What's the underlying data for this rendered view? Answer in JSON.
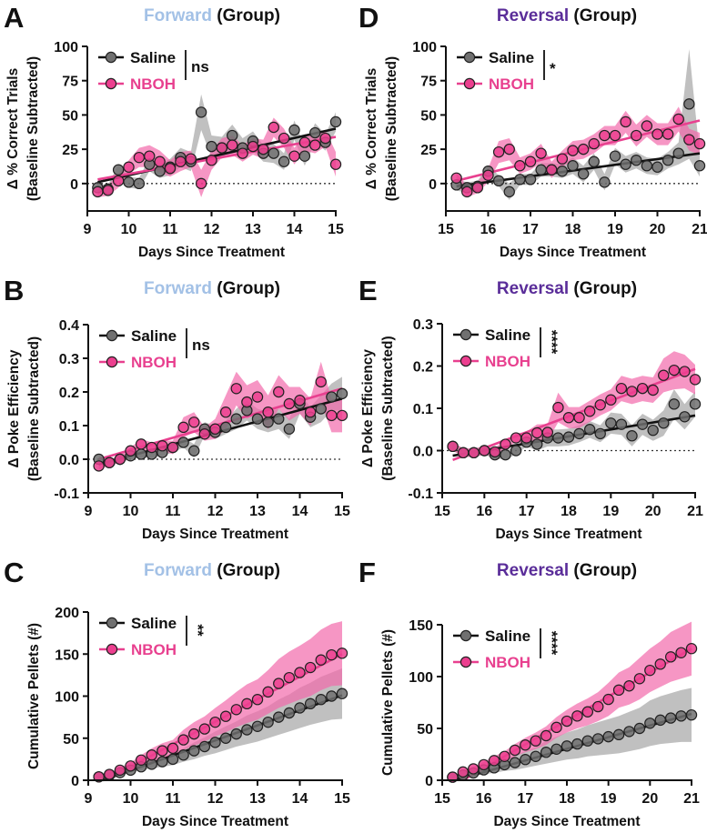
{
  "colors": {
    "forward": "#a3c1e6",
    "reversal": "#5a2d99",
    "saline_marker": "#707070",
    "saline_band": "#9e9e9e",
    "saline_line": "#111111",
    "nboh_marker": "#ec3f8f",
    "nboh_band": "#f26aab",
    "nboh_line": "#e8408f",
    "nboh_text": "#e8408f"
  },
  "chart_data": [
    {
      "panel": "A",
      "type": "line",
      "title_colored": "Forward",
      "title_rest": " (Group)",
      "title_color": "forward",
      "ylabel": [
        "Δ % Correct Trials",
        "(Baseline Subtracted)"
      ],
      "xlabel": "Days Since Treatment",
      "xlim": [
        9,
        15
      ],
      "ylim": [
        -20,
        100
      ],
      "xticks": [
        "9",
        "10",
        "11",
        "12",
        "13",
        "14",
        "15"
      ],
      "yticks": [
        "0",
        "25",
        "50",
        "75",
        "100"
      ],
      "zero_line": true,
      "significance": "ns",
      "x": [
        9.25,
        9.5,
        9.75,
        10,
        10.25,
        10.5,
        10.75,
        11,
        11.25,
        11.5,
        11.75,
        12,
        12.25,
        12.5,
        12.75,
        13,
        13.25,
        13.5,
        13.75,
        14,
        14.25,
        14.5,
        14.75,
        15
      ],
      "series": [
        {
          "name": "Saline",
          "values": [
            -3,
            -4,
            10,
            1,
            0,
            14,
            9,
            12,
            19,
            16,
            52,
            27,
            26,
            35,
            26,
            31,
            22,
            22,
            16,
            39,
            20,
            37,
            30,
            45
          ],
          "sem": [
            3,
            3,
            4,
            4,
            4,
            5,
            5,
            6,
            7,
            7,
            13,
            8,
            8,
            8,
            7,
            7,
            6,
            7,
            6,
            7,
            7,
            7,
            6,
            7
          ],
          "fit": {
            "x": [
              9.25,
              15
            ],
            "y": [
              1,
              40
            ]
          }
        },
        {
          "name": "NBOH",
          "values": [
            -6,
            -5,
            2,
            12,
            19,
            20,
            16,
            11,
            16,
            18,
            0,
            17,
            26,
            28,
            22,
            27,
            25,
            41,
            33,
            20,
            30,
            28,
            33,
            14
          ],
          "sem": [
            4,
            4,
            5,
            5,
            7,
            8,
            8,
            6,
            7,
            6,
            10,
            7,
            7,
            7,
            6,
            6,
            7,
            7,
            7,
            6,
            6,
            6,
            6,
            9
          ],
          "fit": {
            "x": [
              9.25,
              15
            ],
            "y": [
              3,
              34
            ]
          }
        }
      ]
    },
    {
      "panel": "D",
      "type": "line",
      "title_colored": "Reversal",
      "title_rest": " (Group)",
      "title_color": "reversal",
      "ylabel": [
        "Δ % Correct Trials",
        "(Baseline Subtracted)"
      ],
      "xlabel": "Days Since Treatment",
      "xlim": [
        15,
        21
      ],
      "ylim": [
        -20,
        100
      ],
      "xticks": [
        "15",
        "16",
        "17",
        "18",
        "19",
        "20",
        "21"
      ],
      "yticks": [
        "0",
        "25",
        "50",
        "75",
        "100"
      ],
      "zero_line": true,
      "significance": "*",
      "x": [
        15.25,
        15.5,
        15.75,
        16,
        16.25,
        16.5,
        16.75,
        17,
        17.25,
        17.5,
        17.75,
        18,
        18.25,
        18.5,
        18.75,
        19,
        19.25,
        19.5,
        19.75,
        20,
        20.25,
        20.5,
        20.75,
        21
      ],
      "series": [
        {
          "name": "Saline",
          "values": [
            -1,
            -3,
            -2,
            9,
            2,
            -6,
            3,
            3,
            10,
            10,
            9,
            13,
            7,
            16,
            1,
            20,
            14,
            17,
            13,
            12,
            17,
            22,
            58,
            13
          ],
          "sem": [
            4,
            4,
            4,
            4,
            4,
            6,
            4,
            4,
            5,
            5,
            5,
            6,
            6,
            6,
            6,
            6,
            6,
            6,
            6,
            6,
            6,
            8,
            40,
            8
          ],
          "fit": {
            "x": [
              15.25,
              21
            ],
            "y": [
              -2,
              22
            ]
          }
        },
        {
          "name": "NBOH",
          "values": [
            4,
            -6,
            -3,
            6,
            23,
            25,
            13,
            16,
            22,
            10,
            18,
            24,
            25,
            29,
            35,
            35,
            45,
            35,
            42,
            36,
            36,
            47,
            32,
            29
          ],
          "sem": [
            4,
            4,
            4,
            5,
            8,
            8,
            6,
            6,
            7,
            6,
            6,
            7,
            7,
            7,
            7,
            7,
            8,
            8,
            8,
            8,
            8,
            9,
            8,
            8
          ],
          "fit": {
            "x": [
              15.25,
              21
            ],
            "y": [
              2,
              46
            ]
          }
        }
      ]
    },
    {
      "panel": "B",
      "type": "line",
      "title_colored": "Forward",
      "title_rest": " (Group)",
      "title_color": "forward",
      "ylabel": [
        "Δ Poke Efficiency",
        "(Baseline Subtracted)"
      ],
      "xlabel": "Days Since Treatment",
      "xlim": [
        9,
        15
      ],
      "ylim": [
        -0.1,
        0.4
      ],
      "xticks": [
        "9",
        "10",
        "11",
        "12",
        "13",
        "14",
        "15"
      ],
      "yticks": [
        "-0.1",
        "0.0",
        "0.1",
        "0.2",
        "0.3",
        "0.4"
      ],
      "zero_line": true,
      "significance": "ns",
      "x": [
        9.25,
        9.5,
        9.75,
        10,
        10.25,
        10.5,
        10.75,
        11,
        11.25,
        11.5,
        11.75,
        12,
        12.25,
        12.5,
        12.75,
        13,
        13.25,
        13.5,
        13.75,
        14,
        14.25,
        14.5,
        14.75,
        15
      ],
      "series": [
        {
          "name": "Saline",
          "values": [
            0.0,
            -0.01,
            0.0,
            0.01,
            0.015,
            0.015,
            0.02,
            0.035,
            0.05,
            0.025,
            0.09,
            0.08,
            0.095,
            0.12,
            0.145,
            0.12,
            0.11,
            0.12,
            0.09,
            0.165,
            0.125,
            0.15,
            0.185,
            0.195
          ],
          "sem": [
            0.01,
            0.01,
            0.01,
            0.01,
            0.01,
            0.01,
            0.01,
            0.015,
            0.015,
            0.02,
            0.02,
            0.02,
            0.02,
            0.03,
            0.03,
            0.03,
            0.03,
            0.03,
            0.03,
            0.03,
            0.03,
            0.04,
            0.04,
            0.05
          ],
          "fit": {
            "x": [
              9.25,
              15
            ],
            "y": [
              -0.015,
              0.18
            ]
          }
        },
        {
          "name": "NBOH",
          "values": [
            -0.02,
            -0.01,
            0.0,
            0.025,
            0.045,
            0.035,
            0.04,
            0.035,
            0.095,
            0.11,
            0.075,
            0.09,
            0.14,
            0.21,
            0.17,
            0.185,
            0.14,
            0.2,
            0.165,
            0.175,
            0.14,
            0.23,
            0.13,
            0.13
          ],
          "sem": [
            0.01,
            0.01,
            0.01,
            0.01,
            0.015,
            0.015,
            0.015,
            0.02,
            0.03,
            0.03,
            0.02,
            0.03,
            0.05,
            0.05,
            0.05,
            0.05,
            0.05,
            0.05,
            0.05,
            0.04,
            0.04,
            0.06,
            0.05,
            0.05
          ],
          "fit": {
            "x": [
              9.25,
              15
            ],
            "y": [
              0.0,
              0.21
            ]
          }
        }
      ]
    },
    {
      "panel": "E",
      "type": "line",
      "title_colored": "Reversal",
      "title_rest": " (Group)",
      "title_color": "reversal",
      "ylabel": [
        "Δ Poke Efficiency",
        "(Baseline Subtracted)"
      ],
      "xlabel": "Days Since Treatment",
      "xlim": [
        15,
        21
      ],
      "ylim": [
        -0.1,
        0.3
      ],
      "xticks": [
        "15",
        "16",
        "17",
        "18",
        "19",
        "20",
        "21"
      ],
      "yticks": [
        "-0.1",
        "0.0",
        "0.1",
        "0.2",
        "0.3"
      ],
      "zero_line": true,
      "significance": "****",
      "x": [
        15.25,
        15.5,
        15.75,
        16,
        16.25,
        16.5,
        16.75,
        17,
        17.25,
        17.5,
        17.75,
        18,
        18.25,
        18.5,
        18.75,
        19,
        19.25,
        19.5,
        19.75,
        20,
        20.25,
        20.5,
        20.75,
        21
      ],
      "series": [
        {
          "name": "Saline",
          "values": [
            0.01,
            -0.005,
            -0.005,
            0.0,
            -0.01,
            -0.01,
            0.0,
            0.02,
            0.015,
            0.03,
            0.03,
            0.032,
            0.04,
            0.05,
            0.04,
            0.065,
            0.062,
            0.035,
            0.062,
            0.048,
            0.065,
            0.11,
            0.08,
            0.11
          ],
          "sem": [
            0.01,
            0.01,
            0.01,
            0.01,
            0.01,
            0.01,
            0.01,
            0.01,
            0.015,
            0.02,
            0.02,
            0.02,
            0.02,
            0.02,
            0.02,
            0.025,
            0.025,
            0.025,
            0.025,
            0.025,
            0.03,
            0.035,
            0.03,
            0.03
          ],
          "fit": {
            "x": [
              15.25,
              21
            ],
            "y": [
              -0.012,
              0.083
            ]
          }
        },
        {
          "name": "NBOH",
          "values": [
            0.01,
            -0.005,
            -0.005,
            0.0,
            -0.003,
            0.015,
            0.03,
            0.03,
            0.042,
            0.043,
            0.102,
            0.078,
            0.078,
            0.093,
            0.108,
            0.12,
            0.147,
            0.14,
            0.147,
            0.143,
            0.178,
            0.19,
            0.187,
            0.168
          ],
          "sem": [
            0.01,
            0.01,
            0.01,
            0.01,
            0.01,
            0.01,
            0.01,
            0.015,
            0.02,
            0.02,
            0.035,
            0.025,
            0.025,
            0.025,
            0.025,
            0.025,
            0.03,
            0.03,
            0.03,
            0.03,
            0.04,
            0.045,
            0.04,
            0.035
          ],
          "fit": {
            "x": [
              15.25,
              21
            ],
            "y": [
              -0.022,
              0.193
            ]
          }
        }
      ]
    },
    {
      "panel": "C",
      "type": "line",
      "title_colored": "Forward",
      "title_rest": " (Group)",
      "title_color": "forward",
      "ylabel": [
        "Cumulative Pellets (#)"
      ],
      "xlabel": "Days Since Treatment",
      "xlim": [
        9,
        15
      ],
      "ylim": [
        0,
        200
      ],
      "xticks": [
        "9",
        "10",
        "11",
        "12",
        "13",
        "14",
        "15"
      ],
      "yticks": [
        "0",
        "50",
        "100",
        "150",
        "200"
      ],
      "zero_line": false,
      "significance": "**",
      "x": [
        9.25,
        9.5,
        9.75,
        10,
        10.25,
        10.5,
        10.75,
        11,
        11.25,
        11.5,
        11.75,
        12,
        12.25,
        12.5,
        12.75,
        13,
        13.25,
        13.5,
        13.75,
        14,
        14.25,
        14.5,
        14.75,
        15
      ],
      "series": [
        {
          "name": "Saline",
          "values": [
            4,
            6,
            9,
            12,
            16,
            19,
            22,
            25,
            30,
            35,
            40,
            45,
            50,
            55,
            60,
            64,
            69,
            75,
            80,
            86,
            91,
            96,
            100,
            103
          ],
          "sem": [
            1,
            2,
            3,
            3,
            4,
            5,
            6,
            7,
            8,
            10,
            11,
            13,
            14,
            15,
            17,
            18,
            19,
            21,
            22,
            24,
            25,
            27,
            28,
            30
          ],
          "fit": {
            "x": [
              9.35,
              15
            ],
            "y": [
              0,
              101
            ]
          }
        },
        {
          "name": "NBOH",
          "values": [
            4,
            7,
            12,
            17,
            24,
            30,
            35,
            38,
            48,
            55,
            61,
            69,
            76,
            84,
            91,
            96,
            105,
            115,
            122,
            128,
            134,
            143,
            149,
            151
          ],
          "sem": [
            1,
            2,
            3,
            4,
            6,
            8,
            9,
            10,
            12,
            14,
            15,
            17,
            19,
            21,
            23,
            24,
            26,
            29,
            31,
            32,
            34,
            36,
            37,
            38
          ],
          "fit": {
            "x": [
              9.4,
              15
            ],
            "y": [
              0,
              150
            ]
          }
        }
      ]
    },
    {
      "panel": "F",
      "type": "line",
      "title_colored": "Reversal",
      "title_rest": " (Group)",
      "title_color": "reversal",
      "ylabel": [
        "Cumulative Pellets (#)"
      ],
      "xlabel": "Days Since Treatment",
      "xlim": [
        15,
        21
      ],
      "ylim": [
        0,
        150
      ],
      "xticks": [
        "15",
        "16",
        "17",
        "18",
        "19",
        "20",
        "21"
      ],
      "yticks": [
        "0",
        "50",
        "100",
        "150"
      ],
      "zero_line": false,
      "significance": "****",
      "x": [
        15.25,
        15.5,
        15.75,
        16,
        16.25,
        16.5,
        16.75,
        17,
        17.25,
        17.5,
        17.75,
        18,
        18.25,
        18.5,
        18.75,
        19,
        19.25,
        19.5,
        19.75,
        20,
        20.25,
        20.5,
        20.75,
        21
      ],
      "series": [
        {
          "name": "Saline",
          "values": [
            3,
            5,
            7,
            10,
            12,
            15,
            17,
            20,
            23,
            27,
            30,
            33,
            35,
            38,
            40,
            42,
            44,
            47,
            50,
            55,
            58,
            60,
            62,
            63
          ],
          "sem": [
            1,
            2,
            3,
            4,
            5,
            6,
            7,
            8,
            9,
            11,
            12,
            13,
            14,
            15,
            16,
            17,
            18,
            19,
            20,
            22,
            23,
            24,
            25,
            26
          ],
          "fit": {
            "x": [
              15.3,
              21
            ],
            "y": [
              0,
              64
            ]
          }
        },
        {
          "name": "NBOH",
          "values": [
            3,
            8,
            11,
            15,
            19,
            23,
            29,
            34,
            38,
            43,
            51,
            57,
            62,
            66,
            71,
            78,
            87,
            91,
            98,
            106,
            112,
            119,
            123,
            127
          ],
          "sem": [
            1,
            2,
            2,
            3,
            4,
            5,
            6,
            7,
            8,
            9,
            10,
            11,
            12,
            13,
            14,
            16,
            17,
            18,
            20,
            21,
            22,
            24,
            25,
            26
          ],
          "fit": {
            "x": [
              15.5,
              21
            ],
            "y": [
              0,
              127
            ]
          }
        }
      ]
    }
  ]
}
